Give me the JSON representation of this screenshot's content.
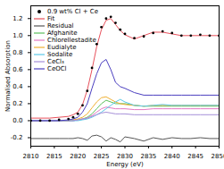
{
  "chart_data": {
    "type": "line",
    "x_label": "Energy (eV)",
    "y_label": "Normalised Absorption",
    "x": [
      2810,
      2812,
      2814,
      2816,
      2818,
      2819,
      2820,
      2821,
      2822,
      2823,
      2824,
      2825,
      2826,
      2827,
      2828,
      2829,
      2830,
      2832,
      2834,
      2836,
      2838,
      2840,
      2842,
      2844,
      2846,
      2848,
      2850
    ],
    "series": [
      {
        "name": "0.9 wt% Cl + Ce",
        "type": "scatter",
        "marker": "circle",
        "color": "#000000",
        "values": [
          0.0,
          0.0,
          0.0,
          0.01,
          0.02,
          0.04,
          0.08,
          0.18,
          0.35,
          0.62,
          0.9,
          1.1,
          1.2,
          1.22,
          1.15,
          1.07,
          1.02,
          0.97,
          0.99,
          1.03,
          1.05,
          1.03,
          1.0,
          1.0,
          1.01,
          1.0,
          1.0
        ]
      },
      {
        "name": "Fit",
        "type": "line",
        "color": "#e8505b",
        "values": [
          0.03,
          0.03,
          0.03,
          0.04,
          0.05,
          0.07,
          0.1,
          0.19,
          0.36,
          0.6,
          0.87,
          1.07,
          1.18,
          1.2,
          1.13,
          1.06,
          1.01,
          0.96,
          1.0,
          1.04,
          1.04,
          1.02,
          1.0,
          1.0,
          1.0,
          1.0,
          1.0
        ]
      },
      {
        "name": "Residual",
        "type": "line",
        "color": "#555555",
        "values": [
          -0.21,
          -0.21,
          -0.21,
          -0.21,
          -0.21,
          -0.21,
          -0.2,
          -0.21,
          -0.23,
          -0.18,
          -0.17,
          -0.19,
          -0.24,
          -0.2,
          -0.22,
          -0.25,
          -0.19,
          -0.21,
          -0.24,
          -0.2,
          -0.22,
          -0.2,
          -0.21,
          -0.21,
          -0.2,
          -0.21,
          -0.21
        ]
      },
      {
        "name": "Afghanite",
        "type": "line",
        "color": "#5cbf5c",
        "values": [
          0,
          0,
          0,
          0,
          0,
          0,
          0.01,
          0.02,
          0.04,
          0.08,
          0.14,
          0.2,
          0.24,
          0.22,
          0.2,
          0.2,
          0.2,
          0.18,
          0.17,
          0.17,
          0.17,
          0.17,
          0.17,
          0.17,
          0.17,
          0.17,
          0.17
        ]
      },
      {
        "name": "Chlorellestadite",
        "type": "line",
        "color": "#e377c2",
        "values": [
          0,
          0,
          0,
          0,
          0,
          0,
          0.01,
          0.02,
          0.03,
          0.06,
          0.1,
          0.14,
          0.16,
          0.15,
          0.14,
          0.14,
          0.14,
          0.13,
          0.13,
          0.14,
          0.14,
          0.14,
          0.14,
          0.14,
          0.14,
          0.14,
          0.14
        ]
      },
      {
        "name": "Eudialyte",
        "type": "line",
        "color": "#f0b030",
        "values": [
          0,
          0,
          0,
          0,
          0,
          0.01,
          0.02,
          0.04,
          0.08,
          0.15,
          0.22,
          0.27,
          0.28,
          0.25,
          0.22,
          0.2,
          0.19,
          0.18,
          0.17,
          0.18,
          0.18,
          0.18,
          0.18,
          0.18,
          0.18,
          0.18,
          0.18
        ]
      },
      {
        "name": "Sodalite",
        "type": "line",
        "color": "#5bc8e8",
        "values": [
          0,
          0,
          0,
          0,
          0,
          0,
          0,
          0.01,
          0.02,
          0.04,
          0.07,
          0.1,
          0.14,
          0.18,
          0.22,
          0.25,
          0.22,
          0.18,
          0.17,
          0.18,
          0.19,
          0.18,
          0.18,
          0.18,
          0.18,
          0.18,
          0.18
        ]
      },
      {
        "name": "CeCl₃",
        "type": "line",
        "color": "#a58fd8",
        "values": [
          0,
          0,
          0,
          0,
          0,
          0,
          0.01,
          0.02,
          0.03,
          0.05,
          0.07,
          0.09,
          0.1,
          0.09,
          0.08,
          0.08,
          0.08,
          0.07,
          0.07,
          0.07,
          0.07,
          0.07,
          0.07,
          0.07,
          0.07,
          0.07,
          0.07
        ]
      },
      {
        "name": "CeOCl",
        "type": "line",
        "color": "#4b3fc0",
        "values": [
          0,
          0,
          0,
          0,
          0.01,
          0.02,
          0.04,
          0.1,
          0.2,
          0.38,
          0.55,
          0.68,
          0.72,
          0.6,
          0.45,
          0.4,
          0.38,
          0.33,
          0.3,
          0.3,
          0.3,
          0.3,
          0.3,
          0.3,
          0.3,
          0.3,
          0.3
        ]
      }
    ],
    "xlim": [
      2810,
      2850
    ],
    "xticks": [
      2810,
      2815,
      2820,
      2825,
      2830,
      2835,
      2840,
      2845,
      2850
    ],
    "ylim": [
      -0.3,
      1.35
    ],
    "yticks": [
      {
        "value": -0.2,
        "label": "-0.2"
      },
      {
        "value": 0,
        "label": "0.0"
      },
      {
        "value": 0.2,
        "label": "0.2"
      },
      {
        "value": 0.4,
        "label": "0.4"
      },
      {
        "value": 0.6,
        "label": "0.6"
      },
      {
        "value": 0.8,
        "label": "0.8"
      },
      {
        "value": 1.0,
        "label": "1.0"
      },
      {
        "value": 1.2,
        "label": "1.2"
      }
    ],
    "legend": "upper left",
    "grid": false
  }
}
